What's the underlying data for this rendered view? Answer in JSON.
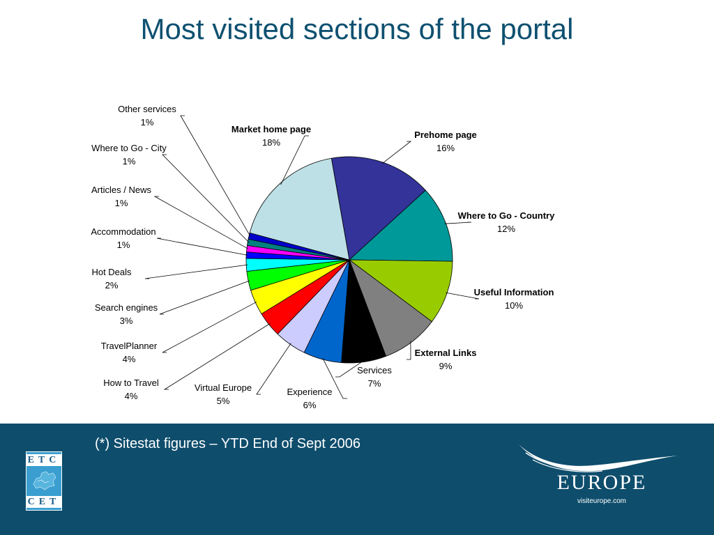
{
  "title": "Most visited sections of the portal",
  "footnote": "(*) Sitestat figures – YTD End of Sept 2006",
  "logos": {
    "etc_top": "ETC",
    "etc_bottom": "CET",
    "europe_word": "EUROPE",
    "europe_url": "visiteurope.com"
  },
  "colors": {
    "title": "#0e5070",
    "footer_band": "#0e4d6c"
  },
  "chart_data": {
    "type": "pie",
    "title": "Most visited sections of the portal",
    "start_angle_deg": 100,
    "direction": "clockwise",
    "slices": [
      {
        "label": "Prehome page",
        "value": 16,
        "display": "16%",
        "bold": true,
        "color": "#33339a"
      },
      {
        "label": "Where to Go - Country",
        "value": 12,
        "display": "12%",
        "bold": true,
        "color": "#009999"
      },
      {
        "label": "Useful Information",
        "value": 10,
        "display": "10%",
        "bold": true,
        "color": "#99cc00"
      },
      {
        "label": "External Links",
        "value": 9,
        "display": "9%",
        "bold": true,
        "color": "#808080"
      },
      {
        "label": "Services",
        "value": 7,
        "display": "7%",
        "bold": false,
        "color": "#000000"
      },
      {
        "label": "Experience",
        "value": 6,
        "display": "6%",
        "bold": false,
        "color": "#0066cc"
      },
      {
        "label": "Virtual Europe",
        "value": 5,
        "display": "5%",
        "bold": false,
        "color": "#ccccff"
      },
      {
        "label": "How to Travel",
        "value": 4,
        "display": "4%",
        "bold": false,
        "color": "#ff0000"
      },
      {
        "label": "TravelPlanner",
        "value": 4,
        "display": "4%",
        "bold": false,
        "color": "#ffff00"
      },
      {
        "label": "Search engines",
        "value": 3,
        "display": "3%",
        "bold": false,
        "color": "#00ff00"
      },
      {
        "label": "Hot Deals",
        "value": 2,
        "display": "2%",
        "bold": false,
        "color": "#00ffff"
      },
      {
        "label": "Accommodation",
        "value": 1,
        "display": "1%",
        "bold": false,
        "color": "#0000ff"
      },
      {
        "label": "Articles / News",
        "value": 1,
        "display": "1%",
        "bold": false,
        "color": "#ff00ff"
      },
      {
        "label": "Where to Go - City",
        "value": 1,
        "display": "1%",
        "bold": false,
        "color": "#008080"
      },
      {
        "label": "Other services",
        "value": 1,
        "display": "1%",
        "bold": false,
        "color": "#0000cc"
      },
      {
        "label": "Market home page",
        "value": 18,
        "display": "18%",
        "bold": true,
        "color": "#bde0e6"
      }
    ]
  }
}
